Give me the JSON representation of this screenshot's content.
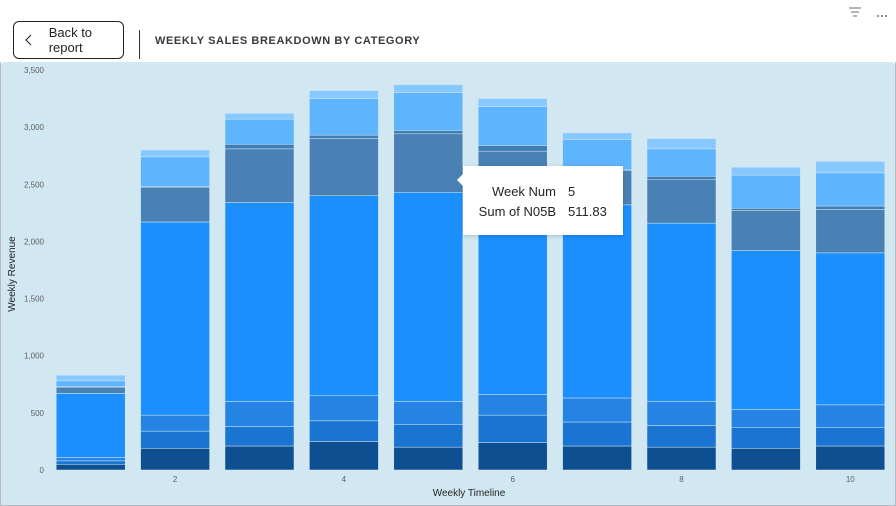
{
  "header": {
    "back_label": "Back to report",
    "title": "WEEKLY SALES BREAKDOWN BY CATEGORY",
    "filter_icon": "filter-icon",
    "more_icon": "more-options-icon"
  },
  "tooltip": {
    "rows": [
      {
        "key": "Week Num",
        "value": "5"
      },
      {
        "key": "Sum of N05B",
        "value": "511.83"
      }
    ]
  },
  "colors": {
    "background": "#d1e8f2",
    "segments": [
      "#0d4f91",
      "#1a74d1",
      "#2583e4",
      "#1c8fff",
      "#4a81b4",
      "#3f7db8",
      "#5eb4fd",
      "#86c8ff"
    ]
  },
  "chart_data": {
    "type": "bar",
    "stacked": true,
    "title": "WEEKLY SALES BREAKDOWN BY CATEGORY",
    "xlabel": "Weekly Timeline",
    "ylabel": "Weekly Revenue",
    "x": [
      1,
      2,
      3,
      4,
      5,
      6,
      7,
      8,
      9,
      10
    ],
    "x_tick_labels": [
      "2",
      "4",
      "6",
      "8",
      "10"
    ],
    "x_ticks": [
      2,
      4,
      6,
      8,
      10
    ],
    "y_tick_labels": [
      "0",
      "500",
      "1,000",
      "1,500",
      "2,000",
      "2,500",
      "3,000",
      "3,500"
    ],
    "y_ticks": [
      0,
      500,
      1000,
      1500,
      2000,
      2500,
      3000,
      3500
    ],
    "ylim": [
      0,
      3500
    ],
    "grid": false,
    "series": [
      {
        "values": [
          50,
          190,
          210,
          250,
          200,
          240,
          210,
          200,
          190,
          210
        ]
      },
      {
        "values": [
          30,
          150,
          170,
          180,
          200,
          240,
          210,
          190,
          180,
          160
        ]
      },
      {
        "values": [
          30,
          140,
          220,
          220,
          200,
          180,
          210,
          210,
          160,
          200
        ]
      },
      {
        "values": [
          560,
          1690,
          1740,
          1750,
          1830,
          1740,
          1690,
          1560,
          1390,
          1330
        ]
      },
      {
        "values": [
          50,
          300,
          470,
          500,
          511.83,
          390,
          300,
          380,
          350,
          380
        ]
      },
      {
        "values": [
          10,
          10,
          40,
          30,
          30,
          50,
          10,
          30,
          20,
          30
        ]
      },
      {
        "values": [
          50,
          260,
          220,
          320,
          330,
          340,
          260,
          240,
          290,
          290
        ]
      },
      {
        "values": [
          50,
          60,
          50,
          70,
          70,
          70,
          60,
          90,
          70,
          100
        ]
      }
    ]
  }
}
